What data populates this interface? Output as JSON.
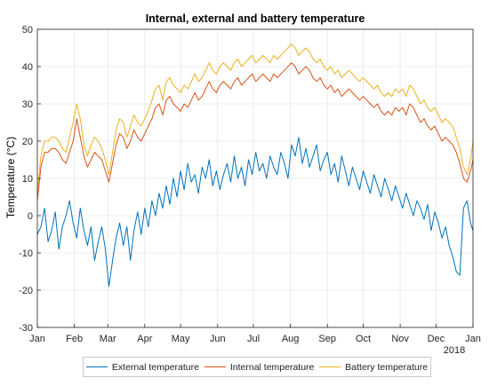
{
  "chart_data": {
    "type": "line",
    "title": "Internal, external and battery temperature",
    "ylabel": "Temperature (°C)",
    "xlabel": "",
    "ylim": [
      -30,
      50
    ],
    "yticks": [
      -30,
      -20,
      -10,
      0,
      10,
      20,
      30,
      40,
      50
    ],
    "xlim": [
      0,
      365
    ],
    "x_tick_labels": [
      "Jan",
      "Feb",
      "Mar",
      "Apr",
      "May",
      "Jun",
      "Jul",
      "Aug",
      "Sep",
      "Oct",
      "Nov",
      "Dec",
      "Jan"
    ],
    "x_tick_days": [
      0,
      31,
      59,
      90,
      120,
      151,
      181,
      212,
      243,
      273,
      304,
      334,
      365
    ],
    "x_year_label": "2018",
    "grid": true,
    "legend_position": "bottom",
    "series": [
      {
        "name": "External temperature",
        "color": "#0072BD",
        "x": [
          0,
          3,
          6,
          9,
          12,
          15,
          18,
          21,
          24,
          27,
          30,
          33,
          36,
          39,
          42,
          45,
          48,
          51,
          54,
          57,
          60,
          63,
          66,
          69,
          72,
          75,
          78,
          81,
          84,
          87,
          90,
          93,
          96,
          99,
          102,
          105,
          108,
          111,
          114,
          117,
          120,
          123,
          126,
          129,
          132,
          135,
          138,
          141,
          144,
          147,
          150,
          153,
          156,
          159,
          162,
          165,
          168,
          171,
          174,
          177,
          180,
          183,
          186,
          189,
          192,
          195,
          198,
          201,
          204,
          207,
          210,
          213,
          216,
          219,
          222,
          225,
          228,
          231,
          234,
          237,
          240,
          243,
          246,
          249,
          252,
          255,
          258,
          261,
          264,
          267,
          270,
          273,
          276,
          279,
          282,
          285,
          288,
          291,
          294,
          297,
          300,
          303,
          306,
          309,
          312,
          315,
          318,
          321,
          324,
          327,
          330,
          333,
          336,
          339,
          342,
          345,
          348,
          351,
          354,
          357,
          360,
          363,
          365
        ],
        "y": [
          -5,
          -3,
          2,
          -7,
          -4,
          1,
          -9,
          -3,
          0,
          4,
          -2,
          -6,
          2,
          -4,
          -8,
          -3,
          -12,
          -7,
          -3,
          -9,
          -19,
          -12,
          -6,
          -2,
          -8,
          -3,
          -12,
          -4,
          1,
          -5,
          2,
          -3,
          4,
          0,
          6,
          2,
          8,
          3,
          10,
          5,
          12,
          7,
          14,
          9,
          11,
          6,
          13,
          10,
          15,
          8,
          12,
          7,
          11,
          14,
          9,
          16,
          10,
          13,
          8,
          15,
          11,
          17,
          12,
          14,
          10,
          16,
          13,
          11,
          17,
          14,
          10,
          19,
          16,
          21,
          14,
          18,
          13,
          16,
          19,
          12,
          15,
          17,
          11,
          14,
          9,
          16,
          12,
          8,
          13,
          10,
          7,
          12,
          9,
          6,
          11,
          8,
          5,
          10,
          7,
          4,
          8,
          5,
          2,
          6,
          3,
          0,
          4,
          2,
          -1,
          3,
          -4,
          1,
          -2,
          -6,
          -3,
          -8,
          -11,
          -15,
          -16,
          2,
          4,
          -2,
          -4
        ]
      },
      {
        "name": "Internal temperature",
        "color": "#D95319",
        "x": [
          0,
          3,
          6,
          9,
          12,
          15,
          18,
          21,
          24,
          27,
          30,
          33,
          36,
          39,
          42,
          45,
          48,
          51,
          54,
          57,
          60,
          63,
          66,
          69,
          72,
          75,
          78,
          81,
          84,
          87,
          90,
          93,
          96,
          99,
          102,
          105,
          108,
          111,
          114,
          117,
          120,
          123,
          126,
          129,
          132,
          135,
          138,
          141,
          144,
          147,
          150,
          153,
          156,
          159,
          162,
          165,
          168,
          171,
          174,
          177,
          180,
          183,
          186,
          189,
          192,
          195,
          198,
          201,
          204,
          207,
          210,
          213,
          216,
          219,
          222,
          225,
          228,
          231,
          234,
          237,
          240,
          243,
          246,
          249,
          252,
          255,
          258,
          261,
          264,
          267,
          270,
          273,
          276,
          279,
          282,
          285,
          288,
          291,
          294,
          297,
          300,
          303,
          306,
          309,
          312,
          315,
          318,
          321,
          324,
          327,
          330,
          333,
          336,
          339,
          342,
          345,
          348,
          351,
          354,
          357,
          360,
          363,
          365
        ],
        "y": [
          4,
          13,
          17,
          17,
          18,
          18,
          17,
          15,
          14,
          17,
          20,
          26,
          21,
          16,
          13,
          15,
          17,
          16,
          15,
          12,
          9,
          14,
          19,
          22,
          21,
          18,
          20,
          23,
          21,
          20,
          22,
          24,
          26,
          29,
          30,
          27,
          31,
          32,
          30,
          29,
          28,
          30,
          29,
          31,
          33,
          31,
          32,
          34,
          36,
          34,
          33,
          35,
          36,
          35,
          34,
          36,
          37,
          35,
          36,
          37,
          38,
          36,
          37,
          38,
          37,
          36,
          38,
          37,
          38,
          39,
          40,
          41,
          40,
          38,
          39,
          40,
          39,
          37,
          36,
          37,
          35,
          34,
          35,
          33,
          34,
          32,
          33,
          34,
          33,
          32,
          31,
          32,
          31,
          30,
          29,
          30,
          28,
          27,
          28,
          27,
          29,
          28,
          29,
          27,
          30,
          29,
          27,
          25,
          26,
          24,
          23,
          24,
          22,
          20,
          21,
          20,
          19,
          17,
          14,
          10,
          9,
          12,
          15
        ]
      },
      {
        "name": "Battery temperature",
        "color": "#EDB120",
        "x": [
          0,
          3,
          6,
          9,
          12,
          15,
          18,
          21,
          24,
          27,
          30,
          33,
          36,
          39,
          42,
          45,
          48,
          51,
          54,
          57,
          60,
          63,
          66,
          69,
          72,
          75,
          78,
          81,
          84,
          87,
          90,
          93,
          96,
          99,
          102,
          105,
          108,
          111,
          114,
          117,
          120,
          123,
          126,
          129,
          132,
          135,
          138,
          141,
          144,
          147,
          150,
          153,
          156,
          159,
          162,
          165,
          168,
          171,
          174,
          177,
          180,
          183,
          186,
          189,
          192,
          195,
          198,
          201,
          204,
          207,
          210,
          213,
          216,
          219,
          222,
          225,
          228,
          231,
          234,
          237,
          240,
          243,
          246,
          249,
          252,
          255,
          258,
          261,
          264,
          267,
          270,
          273,
          276,
          279,
          282,
          285,
          288,
          291,
          294,
          297,
          300,
          303,
          306,
          309,
          312,
          315,
          318,
          321,
          324,
          327,
          330,
          333,
          336,
          339,
          342,
          345,
          348,
          351,
          354,
          357,
          360,
          363,
          365
        ],
        "y": [
          6,
          16,
          20,
          20,
          21,
          21,
          20,
          18,
          17,
          21,
          25,
          30,
          26,
          19,
          16,
          19,
          21,
          20,
          18,
          15,
          11,
          17,
          23,
          26,
          25,
          21,
          24,
          27,
          25,
          24,
          26,
          28,
          31,
          34,
          35,
          31,
          36,
          37,
          35,
          34,
          33,
          35,
          34,
          36,
          38,
          36,
          37,
          39,
          41,
          39,
          38,
          40,
          41,
          40,
          39,
          41,
          42,
          40,
          41,
          42,
          43,
          41,
          42,
          43,
          42,
          41,
          43,
          42,
          43,
          44,
          45,
          46,
          45,
          43,
          44,
          45,
          44,
          42,
          41,
          42,
          40,
          39,
          40,
          38,
          39,
          37,
          38,
          39,
          38,
          37,
          36,
          37,
          36,
          35,
          34,
          35,
          33,
          32,
          33,
          32,
          34,
          33,
          34,
          32,
          35,
          34,
          32,
          30,
          31,
          29,
          28,
          29,
          27,
          25,
          26,
          25,
          24,
          21,
          18,
          13,
          11,
          15,
          20
        ]
      }
    ]
  }
}
